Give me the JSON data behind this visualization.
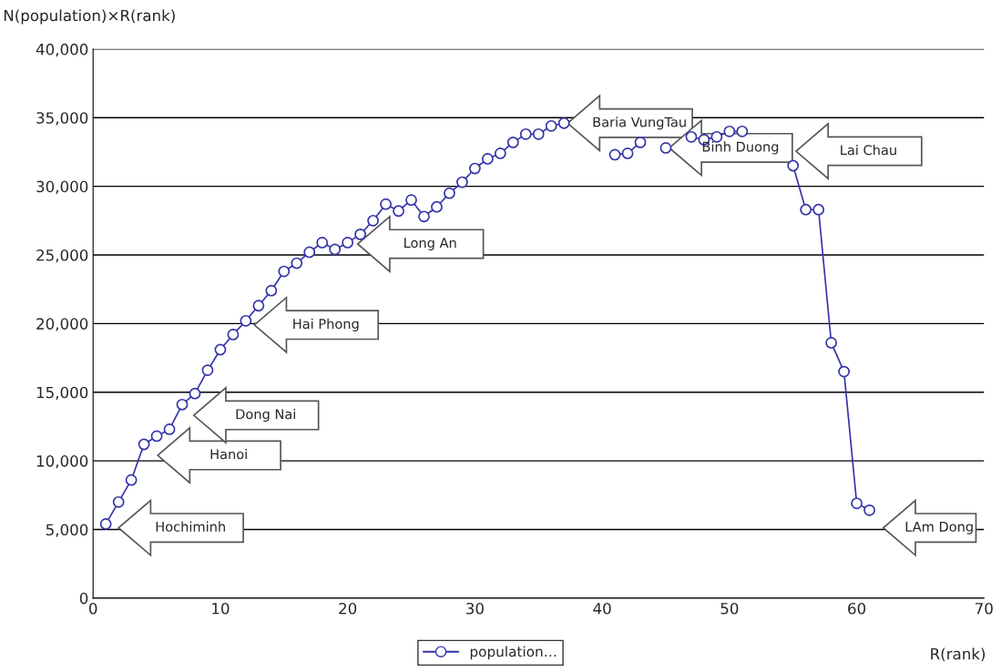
{
  "chart_data": {
    "type": "line",
    "xlabel": "R(rank)",
    "ylabel": "N(population)×R(rank)",
    "x": [
      1,
      2,
      3,
      4,
      5,
      6,
      7,
      8,
      9,
      10,
      11,
      12,
      13,
      14,
      15,
      16,
      17,
      18,
      19,
      20,
      21,
      22,
      23,
      24,
      25,
      26,
      27,
      28,
      29,
      30,
      31,
      32,
      33,
      34,
      35,
      36,
      37,
      38,
      39,
      40,
      41,
      42,
      43,
      44,
      45,
      46,
      47,
      48,
      49,
      50,
      51,
      52,
      53,
      54,
      55,
      56,
      57,
      58,
      59,
      60,
      61
    ],
    "series": [
      {
        "name": "population…",
        "color": "#3333aa",
        "values": [
          5400,
          7000,
          8600,
          11200,
          11800,
          12300,
          14100,
          14900,
          16600,
          18100,
          19200,
          20200,
          21300,
          22400,
          23800,
          24400,
          25200,
          25900,
          25400,
          25900,
          26500,
          27500,
          28700,
          28200,
          29000,
          27800,
          28500,
          29500,
          30300,
          31300,
          32000,
          32400,
          33200,
          33800,
          33800,
          34400,
          34600,
          null,
          null,
          null,
          32300,
          32400,
          33200,
          null,
          32800,
          null,
          33600,
          33400,
          33600,
          34000,
          34000,
          null,
          null,
          null,
          31500,
          28300,
          28300,
          18600,
          16500,
          6900,
          6400
        ]
      }
    ],
    "xlim": [
      0,
      70
    ],
    "xticks": [
      0,
      10,
      20,
      30,
      40,
      50,
      60,
      70
    ],
    "ylim": [
      0,
      40000
    ],
    "yticks": [
      {
        "value": 0,
        "label": "0"
      },
      {
        "value": 5000,
        "label": "5,000"
      },
      {
        "value": 10000,
        "label": "10,000"
      },
      {
        "value": 15000,
        "label": "15,000"
      },
      {
        "value": 20000,
        "label": "20,000"
      },
      {
        "value": 25000,
        "label": "25,000"
      },
      {
        "value": 30000,
        "label": "30,000"
      },
      {
        "value": 35000,
        "label": "35,000"
      },
      {
        "value": 40000,
        "label": "40,000"
      }
    ],
    "grid": "y",
    "legend": "bottom",
    "marker": "circle",
    "line_style": "solid",
    "annotations": [
      "Hochiminh",
      "Hanoi",
      "Dong Nai",
      "Hai Phong",
      "Long An",
      {
        "text": "Baria VungTau",
        "x": 37,
        "y": 34600
      },
      {
        "text": "Binh Duong",
        "x": 45,
        "y": 32800
      },
      "Lai Chau",
      "LAm Dong"
    ]
  }
}
